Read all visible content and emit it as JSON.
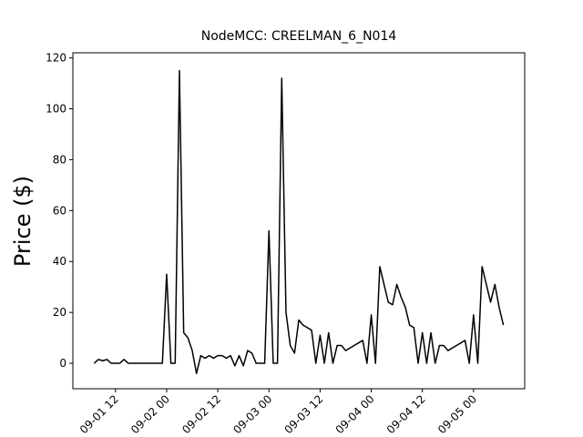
{
  "chart_data": {
    "type": "line",
    "title": "NodeMCC: CREELMAN_6_N014",
    "y_label": "Price ($)",
    "color": "#000000",
    "x": [
      "09-01 07",
      "09-01 08",
      "09-01 09",
      "09-01 10",
      "09-01 11",
      "09-01 12",
      "09-01 13",
      "09-01 14",
      "09-01 15",
      "09-01 16",
      "09-01 17",
      "09-01 18",
      "09-01 19",
      "09-01 20",
      "09-01 21",
      "09-01 22",
      "09-01 23",
      "09-02 00",
      "09-02 01",
      "09-02 02",
      "09-02 03",
      "09-02 04",
      "09-02 05",
      "09-02 06",
      "09-02 07",
      "09-02 08",
      "09-02 09",
      "09-02 10",
      "09-02 11",
      "09-02 12",
      "09-02 13",
      "09-02 14",
      "09-02 15",
      "09-02 16",
      "09-02 17",
      "09-02 18",
      "09-02 19",
      "09-02 20",
      "09-02 21",
      "09-02 22",
      "09-02 23",
      "09-03 00",
      "09-03 01",
      "09-03 02",
      "09-03 03",
      "09-03 04",
      "09-03 05",
      "09-03 06",
      "09-03 07",
      "09-03 08",
      "09-03 09",
      "09-03 10",
      "09-03 11",
      "09-03 12",
      "09-03 13",
      "09-03 14",
      "09-03 15",
      "09-03 16",
      "09-03 17",
      "09-03 18",
      "09-03 19",
      "09-03 20",
      "09-03 21",
      "09-03 22",
      "09-03 23",
      "09-04 00",
      "09-04 01",
      "09-04 02",
      "09-04 03",
      "09-04 04",
      "09-04 05",
      "09-04 06",
      "09-04 07",
      "09-04 08",
      "09-04 09",
      "09-04 10",
      "09-04 11",
      "09-04 12",
      "09-04 13",
      "09-04 14",
      "09-04 15",
      "09-04 16",
      "09-04 17",
      "09-04 18",
      "09-04 19",
      "09-04 20",
      "09-04 21",
      "09-04 22",
      "09-04 23",
      "09-05 00",
      "09-05 01",
      "09-05 02",
      "09-05 03",
      "09-05 04",
      "09-05 05",
      "09-05 06",
      "09-05 07"
    ],
    "values": [
      0,
      1.5,
      1,
      1.5,
      0,
      0,
      0,
      1.5,
      0,
      0,
      0,
      0,
      0,
      0,
      0,
      0,
      0,
      35,
      0,
      0,
      115,
      12,
      10,
      5,
      -4,
      3,
      2,
      3,
      2,
      3,
      3,
      2,
      3,
      -1,
      3,
      -1,
      5,
      4,
      0,
      0,
      0,
      52,
      0,
      0,
      112,
      20,
      7,
      4,
      17,
      15,
      14,
      13,
      0,
      11,
      0,
      12,
      0,
      7,
      7,
      5,
      6,
      7,
      8,
      9,
      0,
      19,
      0,
      38,
      31,
      24,
      23,
      31,
      26,
      22,
      15,
      14,
      0,
      12,
      0,
      12,
      0,
      7,
      7,
      5,
      6,
      7,
      8,
      9,
      0,
      19,
      0,
      38,
      31,
      24,
      31,
      22,
      15
    ],
    "xlim": [
      "09-01 02",
      "09-05 12"
    ],
    "xticks": [
      "09-01 12",
      "09-02 00",
      "09-02 12",
      "09-03 00",
      "09-03 12",
      "09-04 00",
      "09-04 12",
      "09-05 00"
    ],
    "ylim": [
      -10,
      122
    ],
    "yticks": [
      0,
      20,
      40,
      60,
      80,
      100,
      120
    ]
  }
}
